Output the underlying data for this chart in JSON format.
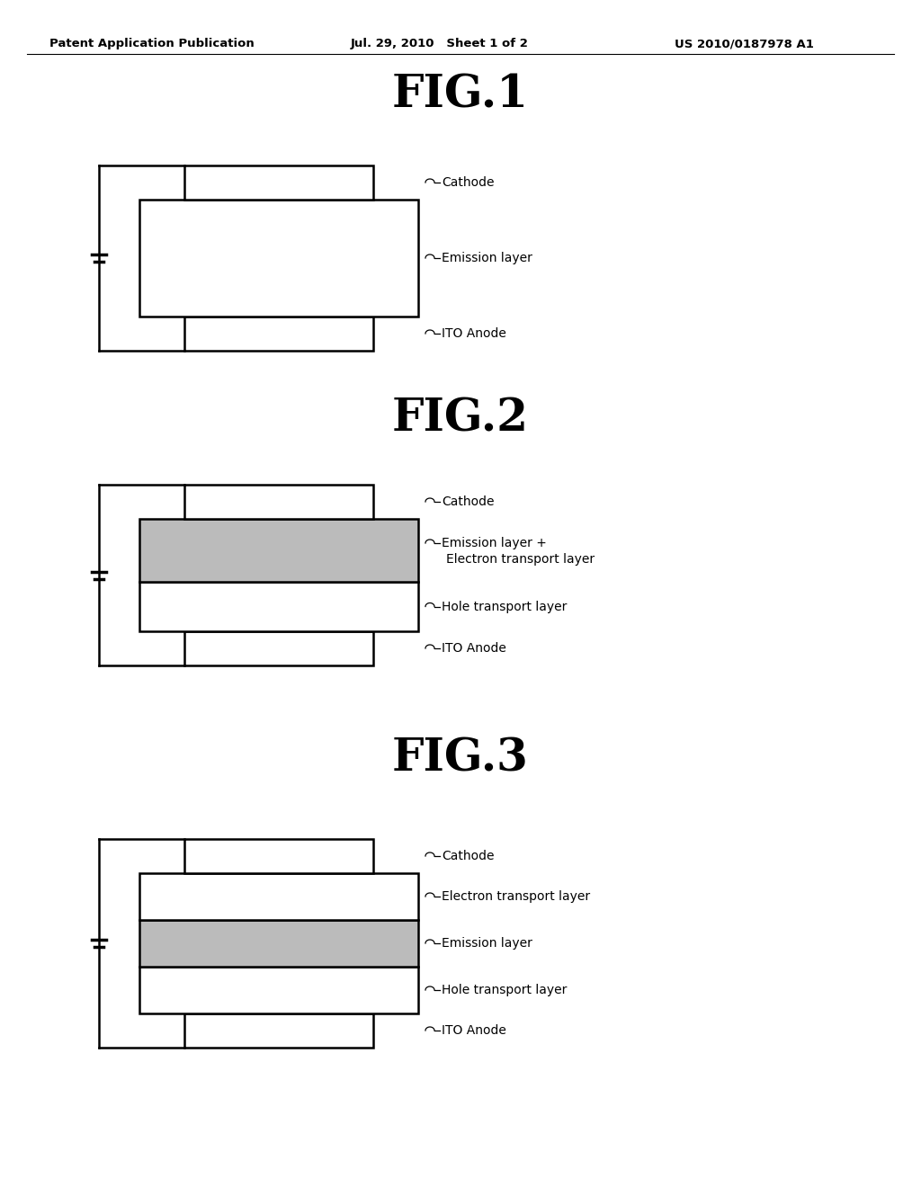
{
  "header_left": "Patent Application Publication",
  "header_center": "Jul. 29, 2010   Sheet 1 of 2",
  "header_right": "US 2010/0187978 A1",
  "bg_color": "#ffffff",
  "fig1_title": "FIG.1",
  "fig2_title": "FIG.2",
  "fig3_title": "FIG.3",
  "label_cathode": "Cathode",
  "label_emission": "Emission layer",
  "label_anode": "ITO Anode",
  "label_emission_etl_1": "Emission layer +",
  "label_emission_etl_2": "Electron transport layer",
  "label_htl": "Hole transport layer",
  "label_etl": "Electron transport layer",
  "gray_fill": "#bbbbbb",
  "white_fill": "#ffffff",
  "edge_color": "#000000"
}
